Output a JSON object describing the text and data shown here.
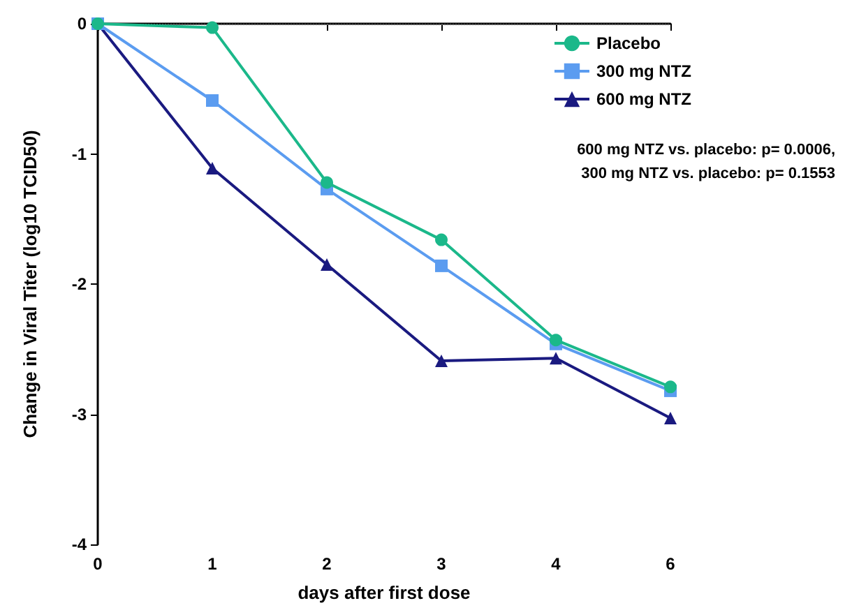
{
  "chart_data": {
    "type": "line",
    "xlabel": "days after first dose",
    "ylabel": "Change in Viral Titer (log10 TCID50)",
    "categories": [
      "0",
      "1",
      "2",
      "3",
      "4",
      "6"
    ],
    "series": [
      {
        "name": "Placebo",
        "color": "#1bb88a",
        "marker": "circle",
        "values": [
          0,
          -0.03,
          -1.22,
          -1.66,
          -2.43,
          -2.79
        ]
      },
      {
        "name": "300 mg NTZ",
        "color": "#5b9cf0",
        "marker": "square",
        "values": [
          0,
          -0.59,
          -1.27,
          -1.86,
          -2.46,
          -2.82
        ]
      },
      {
        "name": "600 mg NTZ",
        "color": "#1a1a80",
        "marker": "triangle",
        "values": [
          0,
          -1.11,
          -1.85,
          -2.59,
          -2.57,
          -3.03
        ]
      }
    ],
    "ylim": [
      -4,
      0
    ],
    "yticks": [
      -4,
      -3,
      -2,
      -1,
      0
    ],
    "ref_lines": [
      {
        "axis": "y",
        "value": 0,
        "line_style": "dotted",
        "color": "#555555"
      }
    ],
    "annotations": [
      "600 mg NTZ vs. placebo: p= 0.0006,",
      "300 mg NTZ vs. placebo: p= 0.1553"
    ],
    "legend": "top right",
    "grid": false,
    "line_style": "solid"
  }
}
